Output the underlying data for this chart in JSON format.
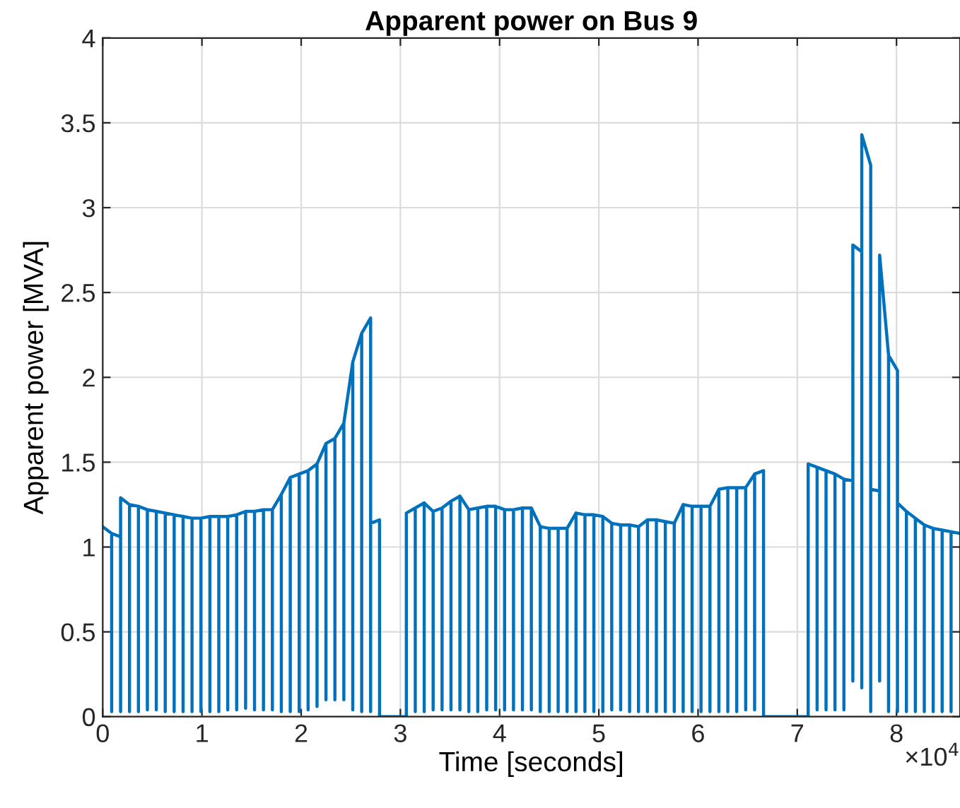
{
  "chart_data": {
    "type": "line",
    "title": "Apparent power on Bus 9",
    "xlabel": "Time [seconds]",
    "ylabel": "Apparent power [MVA]",
    "annotations": [
      "×10$^{4}$"
    ],
    "xlim": [
      0,
      8.64
    ],
    "ylim": [
      0,
      4
    ],
    "xticks": [
      0,
      1,
      2,
      3,
      4,
      5,
      6,
      7,
      8
    ],
    "yticks": [
      0,
      0.5,
      1,
      1.5,
      2,
      2.5,
      3,
      3.5,
      4
    ],
    "grid": true,
    "line_style": "solid",
    "marker": "none",
    "series": [
      {
        "color": "#0072bd",
        "x": [
          0,
          0.09,
          0.09,
          0.09,
          0.18,
          0.18,
          0.18,
          0.27,
          0.27,
          0.27,
          0.36,
          0.36,
          0.36,
          0.45,
          0.45,
          0.45,
          0.54,
          0.54,
          0.54,
          0.63,
          0.63,
          0.63,
          0.72,
          0.72,
          0.72,
          0.81,
          0.81,
          0.81,
          0.9,
          0.9,
          0.9,
          0.99,
          0.99,
          0.99,
          1.08,
          1.08,
          1.08,
          1.17,
          1.17,
          1.17,
          1.26,
          1.26,
          1.26,
          1.35,
          1.35,
          1.35,
          1.44,
          1.44,
          1.44,
          1.53,
          1.53,
          1.53,
          1.62,
          1.62,
          1.62,
          1.71,
          1.71,
          1.71,
          1.8,
          1.8,
          1.8,
          1.89,
          1.89,
          1.89,
          1.98,
          1.98,
          1.98,
          2.07,
          2.07,
          2.07,
          2.16,
          2.16,
          2.16,
          2.25,
          2.25,
          2.25,
          2.34,
          2.34,
          2.34,
          2.43,
          2.43,
          2.43,
          2.52,
          2.52,
          2.52,
          2.61,
          2.61,
          2.61,
          2.7,
          2.7,
          2.7,
          2.79,
          2.79,
          3.06,
          3.06,
          3.15,
          3.15,
          3.15,
          3.24,
          3.24,
          3.24,
          3.33,
          3.33,
          3.33,
          3.42,
          3.42,
          3.42,
          3.51,
          3.51,
          3.51,
          3.6,
          3.6,
          3.6,
          3.69,
          3.69,
          3.69,
          3.78,
          3.78,
          3.78,
          3.87,
          3.87,
          3.87,
          3.96,
          3.96,
          3.96,
          4.05,
          4.05,
          4.05,
          4.14,
          4.14,
          4.14,
          4.23,
          4.23,
          4.23,
          4.32,
          4.32,
          4.32,
          4.41,
          4.41,
          4.41,
          4.5,
          4.5,
          4.5,
          4.59,
          4.59,
          4.59,
          4.68,
          4.68,
          4.68,
          4.77,
          4.77,
          4.77,
          4.86,
          4.86,
          4.86,
          4.95,
          4.95,
          4.95,
          5.04,
          5.04,
          5.04,
          5.13,
          5.13,
          5.13,
          5.22,
          5.22,
          5.22,
          5.31,
          5.31,
          5.31,
          5.4,
          5.4,
          5.4,
          5.49,
          5.49,
          5.49,
          5.58,
          5.58,
          5.58,
          5.67,
          5.67,
          5.67,
          5.76,
          5.76,
          5.76,
          5.85,
          5.85,
          5.85,
          5.94,
          5.94,
          5.94,
          6.03,
          6.03,
          6.03,
          6.12,
          6.12,
          6.12,
          6.21,
          6.21,
          6.21,
          6.3,
          6.3,
          6.3,
          6.39,
          6.39,
          6.39,
          6.48,
          6.48,
          6.48,
          6.57,
          6.57,
          6.57,
          6.66,
          6.66,
          7.11,
          7.11,
          7.2,
          7.2,
          7.2,
          7.29,
          7.29,
          7.29,
          7.38,
          7.38,
          7.38,
          7.47,
          7.47,
          7.47,
          7.56,
          7.56,
          7.56,
          7.65,
          7.65,
          7.65,
          7.74,
          7.74,
          7.74,
          7.83,
          7.83,
          7.83,
          7.92,
          7.92,
          7.92,
          8.01,
          8.01,
          8.01,
          8.1,
          8.1,
          8.1,
          8.19,
          8.19,
          8.19,
          8.28,
          8.28,
          8.28,
          8.37,
          8.37,
          8.37,
          8.46,
          8.46,
          8.46,
          8.55,
          8.55,
          8.55,
          8.64
        ],
        "values": [
          1.12,
          1.08,
          0.03,
          1.08,
          1.06,
          0.03,
          1.29,
          1.25,
          0.03,
          1.25,
          1.24,
          0.03,
          1.24,
          1.22,
          0.04,
          1.22,
          1.21,
          0.04,
          1.21,
          1.2,
          0.03,
          1.2,
          1.19,
          0.03,
          1.19,
          1.18,
          0.03,
          1.18,
          1.17,
          0.03,
          1.17,
          1.17,
          0.03,
          1.17,
          1.18,
          0.03,
          1.18,
          1.18,
          0.03,
          1.18,
          1.18,
          0.04,
          1.18,
          1.19,
          0.04,
          1.19,
          1.21,
          0.05,
          1.21,
          1.21,
          0.04,
          1.21,
          1.22,
          0.04,
          1.22,
          1.22,
          0.04,
          1.22,
          1.31,
          0.03,
          1.31,
          1.41,
          0.03,
          1.41,
          1.43,
          0.03,
          1.43,
          1.45,
          0.04,
          1.45,
          1.49,
          0.06,
          1.49,
          1.61,
          0.1,
          1.61,
          1.64,
          0.1,
          1.64,
          1.73,
          0.1,
          1.73,
          2.09,
          0.04,
          2.09,
          2.26,
          0.03,
          2.26,
          2.35,
          0.03,
          1.14,
          1.16,
          0,
          0,
          1.2,
          1.23,
          0.03,
          1.23,
          1.26,
          0.03,
          1.26,
          1.21,
          0.04,
          1.21,
          1.23,
          0.04,
          1.23,
          1.27,
          0.04,
          1.27,
          1.3,
          0.04,
          1.3,
          1.22,
          0.03,
          1.22,
          1.23,
          0.03,
          1.23,
          1.24,
          0.04,
          1.24,
          1.24,
          0.04,
          1.24,
          1.22,
          0.04,
          1.22,
          1.22,
          0.04,
          1.22,
          1.23,
          0.04,
          1.23,
          1.23,
          0.04,
          1.23,
          1.12,
          0.03,
          1.12,
          1.11,
          0.03,
          1.11,
          1.11,
          0.03,
          1.11,
          1.11,
          0.03,
          1.11,
          1.2,
          0.03,
          1.2,
          1.19,
          0.03,
          1.19,
          1.19,
          0.03,
          1.19,
          1.18,
          0.03,
          1.18,
          1.14,
          0.04,
          1.14,
          1.13,
          0.04,
          1.13,
          1.13,
          0.03,
          1.13,
          1.12,
          0.03,
          1.12,
          1.16,
          0.03,
          1.16,
          1.16,
          0.03,
          1.16,
          1.15,
          0.03,
          1.15,
          1.14,
          0.03,
          1.14,
          1.25,
          0.03,
          1.25,
          1.24,
          0.03,
          1.24,
          1.24,
          0.03,
          1.24,
          1.24,
          0.03,
          1.24,
          1.34,
          0.03,
          1.34,
          1.35,
          0.03,
          1.35,
          1.35,
          0.03,
          1.35,
          1.35,
          0.04,
          1.35,
          1.43,
          0.04,
          1.43,
          1.45,
          0,
          0,
          1.49,
          1.47,
          0.04,
          1.47,
          1.45,
          0.04,
          1.45,
          1.43,
          0.04,
          1.43,
          1.4,
          0.04,
          1.4,
          1.39,
          0.21,
          2.78,
          2.74,
          0.17,
          3.43,
          3.25,
          0.03,
          1.34,
          1.33,
          0.21,
          2.72,
          2.13,
          0.03,
          2.13,
          2.04,
          0.03,
          1.26,
          1.21,
          0.03,
          1.21,
          1.17,
          0.03,
          1.17,
          1.13,
          0.03,
          1.13,
          1.11,
          0.03,
          1.11,
          1.1,
          0.03,
          1.1,
          1.09,
          0.03,
          1.09,
          1.08
        ]
      }
    ]
  }
}
